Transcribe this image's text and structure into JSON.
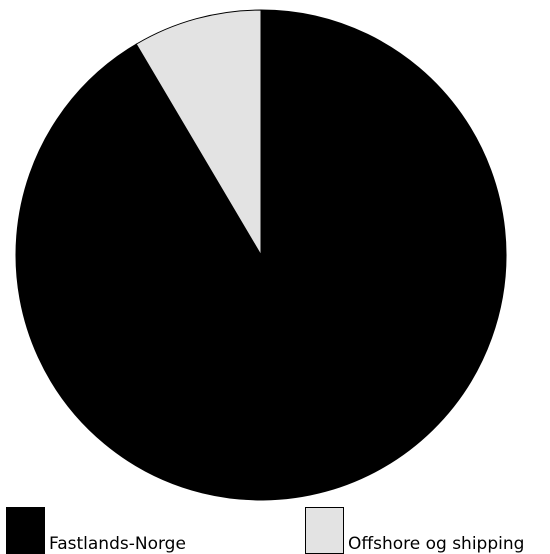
{
  "chart_data": {
    "type": "pie",
    "title": "",
    "categories": [
      "Fastlands-Norge",
      "Offshore og shipping"
    ],
    "values": [
      91.5,
      8.5
    ],
    "colors": [
      "#000000",
      "#e3e3e3"
    ],
    "start_angle": "12 o'clock",
    "direction": "clockwise",
    "legend_position": "bottom"
  },
  "legend": {
    "items": [
      {
        "label": "Fastlands-Norge",
        "color": "#000000"
      },
      {
        "label": "Offshore og shipping",
        "color": "#e3e3e3"
      }
    ]
  }
}
